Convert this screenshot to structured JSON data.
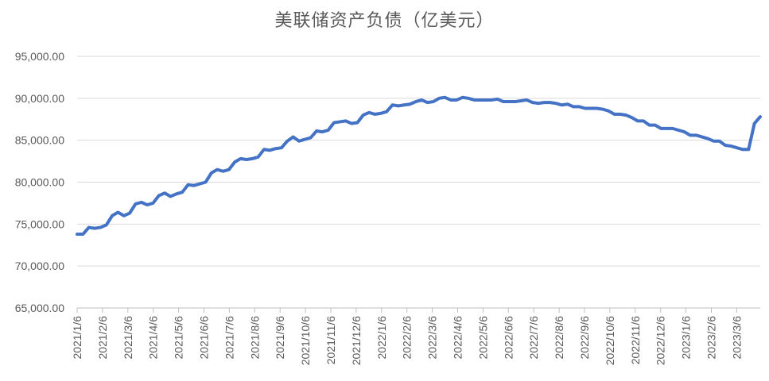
{
  "chart_data": {
    "type": "line",
    "title": "美联储资产负债（亿美元）",
    "xlabel": "",
    "ylabel": "",
    "ylim": [
      65000,
      95000
    ],
    "y_ticks": [
      "95,000.00",
      "90,000.00",
      "85,000.00",
      "80,000.00",
      "75,000.00",
      "70,000.00",
      "65,000.00"
    ],
    "y_tick_values": [
      95000,
      90000,
      85000,
      80000,
      75000,
      70000,
      65000
    ],
    "x_ticks": [
      "2021/1/6",
      "2021/2/6",
      "2021/3/6",
      "2021/4/6",
      "2021/5/6",
      "2021/6/6",
      "2021/7/6",
      "2021/8/6",
      "2021/9/6",
      "2021/10/6",
      "2021/11/6",
      "2021/12/6",
      "2022/1/6",
      "2022/2/6",
      "2022/3/6",
      "2022/4/6",
      "2022/5/6",
      "2022/6/6",
      "2022/7/6",
      "2022/8/6",
      "2022/9/6",
      "2022/10/6",
      "2022/11/6",
      "2022/12/6",
      "2023/1/6",
      "2023/2/6",
      "2023/3/6"
    ],
    "grid": true,
    "legend": "none",
    "series_color": "#4472c4",
    "series": [
      {
        "values": [
          73800,
          73800,
          74600,
          74500,
          74600,
          74900,
          76000,
          76400,
          76000,
          76300,
          77400,
          77600,
          77300,
          77500,
          78400,
          78700,
          78300,
          78600,
          78800,
          79700,
          79600,
          79800,
          80000,
          81100,
          81500,
          81300,
          81500,
          82400,
          82800,
          82700,
          82800,
          83000,
          83900,
          83800,
          84000,
          84100,
          84900,
          85400,
          84900,
          85100,
          85300,
          86100,
          86000,
          86200,
          87100,
          87200,
          87300,
          87000,
          87100,
          88000,
          88300,
          88100,
          88200,
          88400,
          89200,
          89100,
          89200,
          89300,
          89600,
          89800,
          89500,
          89600,
          90000,
          90100,
          89800,
          89800,
          90100,
          90000,
          89800,
          89800,
          89800,
          89800,
          89900,
          89600,
          89600,
          89600,
          89700,
          89800,
          89500,
          89400,
          89500,
          89500,
          89400,
          89200,
          89300,
          89000,
          89000,
          88800,
          88800,
          88800,
          88700,
          88500,
          88100,
          88100,
          88000,
          87700,
          87300,
          87300,
          86800,
          86800,
          86400,
          86400,
          86400,
          86200,
          86000,
          85600,
          85600,
          85400,
          85200,
          84900,
          84900,
          84400,
          84300,
          84100,
          83900,
          83900,
          87000,
          87800
        ]
      }
    ]
  }
}
